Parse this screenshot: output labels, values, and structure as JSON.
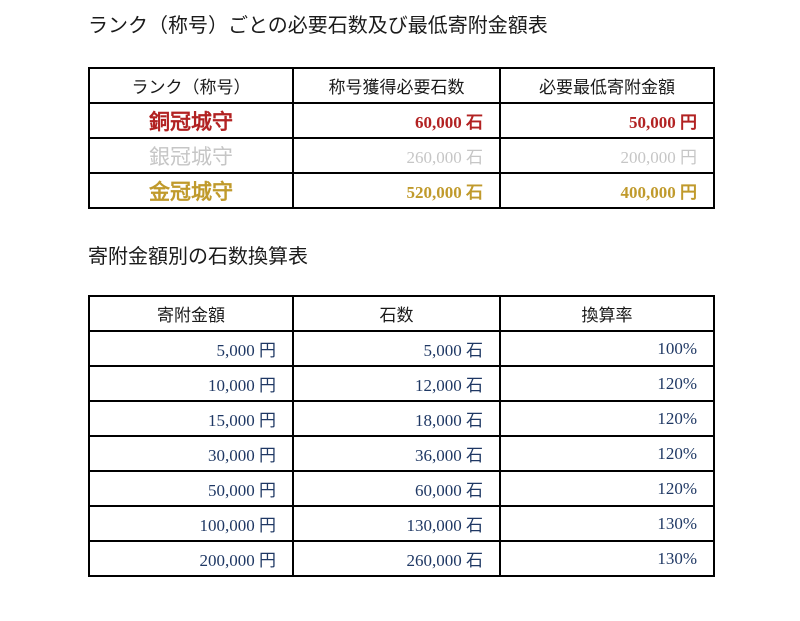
{
  "titles": {
    "rank_table": "ランク（称号）ごとの必要石数及び最低寄附金額表",
    "conversion_table": "寄附金額別の石数換算表"
  },
  "rank_table": {
    "headers": [
      "ランク（称号）",
      "称号獲得必要石数",
      "必要最低寄附金額"
    ],
    "rows": [
      {
        "rank": "銅冠城守",
        "required_stones": "60,000 石",
        "min_donation": "50,000 円",
        "color": "#b22222",
        "weight": "bold"
      },
      {
        "rank": "銀冠城守",
        "required_stones": "260,000 石",
        "min_donation": "200,000 円",
        "color": "#c6c6c6",
        "weight": "normal"
      },
      {
        "rank": "金冠城守",
        "required_stones": "520,000 石",
        "min_donation": "400,000 円",
        "color": "#c09a2c",
        "weight": "bold"
      }
    ]
  },
  "conversion_table": {
    "headers": [
      "寄附金額",
      "石数",
      "換算率"
    ],
    "text_color": "#1f3864",
    "rows": [
      {
        "donation": "5,000 円",
        "stones": "5,000 石",
        "rate": "100%"
      },
      {
        "donation": "10,000 円",
        "stones": "12,000 石",
        "rate": "120%"
      },
      {
        "donation": "15,000 円",
        "stones": "18,000 石",
        "rate": "120%"
      },
      {
        "donation": "30,000 円",
        "stones": "36,000 石",
        "rate": "120%"
      },
      {
        "donation": "50,000 円",
        "stones": "60,000 石",
        "rate": "120%"
      },
      {
        "donation": "100,000 円",
        "stones": "130,000 石",
        "rate": "130%"
      },
      {
        "donation": "200,000 円",
        "stones": "260,000 石",
        "rate": "130%"
      }
    ]
  },
  "colors": {
    "border": "#000000",
    "bronze": "#b22222",
    "silver": "#c6c6c6",
    "gold": "#c09a2c",
    "navy": "#1f3864"
  }
}
